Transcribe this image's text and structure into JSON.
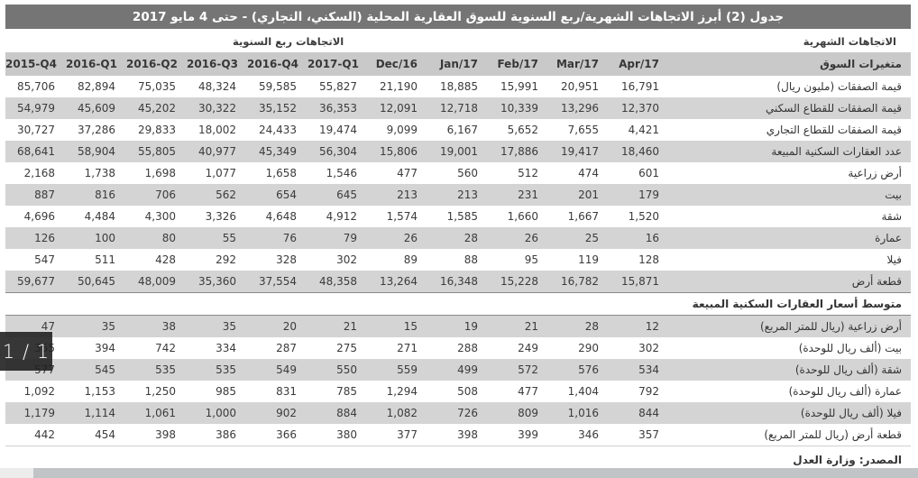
{
  "page": {
    "title": "جدول (2) أبرز الاتجاهات الشهرية/ربع السنوية للسوق العقارية المحلية (السكني، التجاري) - حتى 4 مايو 2017"
  },
  "trend_band": {
    "quarterly_label": "الاتجاهات ربع السنوية",
    "monthly_label": "الاتجاهات الشهرية"
  },
  "table": {
    "label_header": "متغيرات السوق",
    "columns": [
      "2015-Q4",
      "2016-Q1",
      "2016-Q2",
      "2016-Q3",
      "2016-Q4",
      "2017-Q1",
      "Dec/16",
      "Jan/17",
      "Feb/17",
      "Mar/17",
      "Apr/17"
    ],
    "sections": [
      {
        "rows": [
          {
            "label": "قيمة الصفقات (مليون ريال)",
            "values": [
              "85,706",
              "82,894",
              "75,035",
              "48,324",
              "59,585",
              "55,827",
              "21,190",
              "18,885",
              "15,991",
              "20,951",
              "16,791"
            ]
          },
          {
            "label": "قيمة الصفقات للقطاع السكني",
            "values": [
              "54,979",
              "45,609",
              "45,202",
              "30,322",
              "35,152",
              "36,353",
              "12,091",
              "12,718",
              "10,339",
              "13,296",
              "12,370"
            ]
          },
          {
            "label": "قيمة الصفقات للقطاع التجاري",
            "values": [
              "30,727",
              "37,286",
              "29,833",
              "18,002",
              "24,433",
              "19,474",
              "9,099",
              "6,167",
              "5,652",
              "7,655",
              "4,421"
            ]
          },
          {
            "label": "عدد العقارات السكنية المبيعة",
            "values": [
              "68,641",
              "58,904",
              "55,805",
              "40,977",
              "45,349",
              "56,304",
              "15,806",
              "19,001",
              "17,886",
              "19,417",
              "18,460"
            ]
          },
          {
            "label": "أرض زراعية",
            "values": [
              "2,168",
              "1,738",
              "1,698",
              "1,077",
              "1,658",
              "1,546",
              "477",
              "560",
              "512",
              "474",
              "601"
            ]
          },
          {
            "label": "بيت",
            "values": [
              "887",
              "816",
              "706",
              "562",
              "654",
              "645",
              "213",
              "213",
              "231",
              "201",
              "179"
            ]
          },
          {
            "label": "شقة",
            "values": [
              "4,696",
              "4,484",
              "4,300",
              "3,326",
              "4,648",
              "4,912",
              "1,574",
              "1,585",
              "1,660",
              "1,667",
              "1,520"
            ]
          },
          {
            "label": "عمارة",
            "values": [
              "126",
              "100",
              "80",
              "55",
              "76",
              "79",
              "26",
              "28",
              "26",
              "25",
              "16"
            ]
          },
          {
            "label": "فيلا",
            "values": [
              "547",
              "511",
              "428",
              "292",
              "328",
              "302",
              "89",
              "88",
              "95",
              "119",
              "128"
            ]
          },
          {
            "label": "قطعة أرض",
            "values": [
              "59,677",
              "50,645",
              "48,009",
              "35,360",
              "37,554",
              "48,358",
              "13,264",
              "16,348",
              "15,228",
              "16,782",
              "15,871"
            ]
          }
        ]
      },
      {
        "header": "متوسط أسعار العقارات السكنية المبيعة",
        "rows": [
          {
            "label": "أرض زراعية  (ريال للمتر المربع)",
            "values": [
              "47",
              "35",
              "38",
              "35",
              "20",
              "21",
              "15",
              "19",
              "21",
              "28",
              "12"
            ]
          },
          {
            "label": "بيت  (ألف ريال للوحدة)",
            "values": [
              "355",
              "394",
              "742",
              "334",
              "287",
              "275",
              "271",
              "288",
              "249",
              "290",
              "302"
            ]
          },
          {
            "label": "شقة  (ألف ريال للوحدة)",
            "values": [
              "577",
              "545",
              "535",
              "535",
              "549",
              "550",
              "559",
              "499",
              "572",
              "576",
              "534"
            ]
          },
          {
            "label": "عمارة  (ألف ريال للوحدة)",
            "values": [
              "1,092",
              "1,153",
              "1,250",
              "985",
              "831",
              "785",
              "1,294",
              "508",
              "477",
              "1,404",
              "792"
            ]
          },
          {
            "label": "فيلا  (ألف ريال للوحدة)",
            "values": [
              "1,179",
              "1,114",
              "1,061",
              "1,000",
              "902",
              "884",
              "1,082",
              "726",
              "809",
              "1,016",
              "844"
            ]
          },
          {
            "label": "قطعة أرض  (ريال للمتر المربع)",
            "values": [
              "442",
              "454",
              "398",
              "386",
              "366",
              "380",
              "377",
              "398",
              "399",
              "346",
              "357"
            ]
          }
        ]
      }
    ],
    "source": "المصدر: وزارة العدل"
  },
  "viewer": {
    "page_indicator": "1 / 1"
  },
  "colors": {
    "title_bar": "#767575",
    "header_row": "#c9c9c9",
    "stripe_row": "#d4d4d4",
    "overlay": "#212121",
    "scrollbar_thumb": "#c1c4c6"
  }
}
